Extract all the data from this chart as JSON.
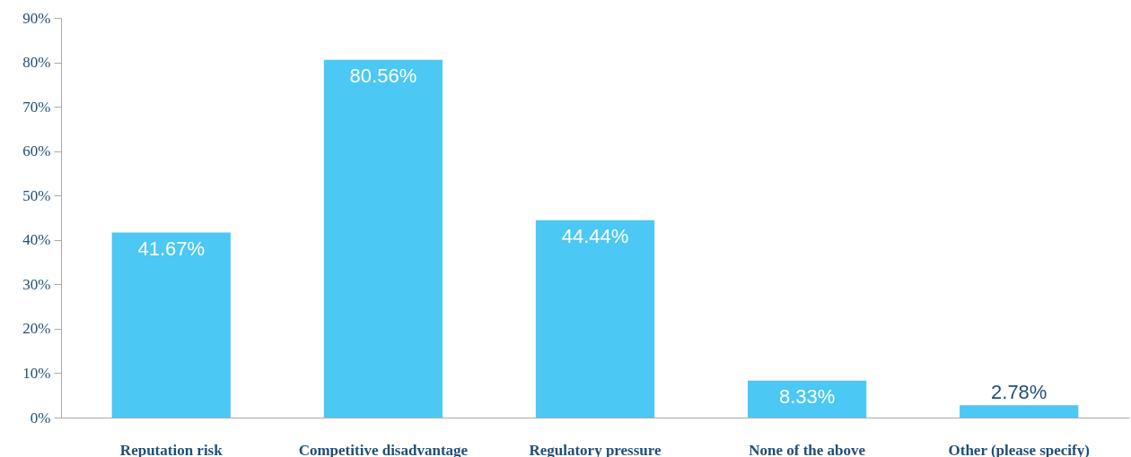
{
  "chart_data": {
    "type": "bar",
    "categories": [
      "Reputation risk",
      "Competitive disadvantage",
      "Regulatory pressure",
      "None of the above",
      "Other (please specify)"
    ],
    "values": [
      41.67,
      80.56,
      44.44,
      8.33,
      2.78
    ],
    "value_labels": [
      "41.67%",
      "80.56%",
      "44.44%",
      "8.33%",
      "2.78%"
    ],
    "color": "#4bc8f4",
    "ylim": [
      0,
      90
    ],
    "yticks": [
      {
        "value": 0,
        "label": "0%"
      },
      {
        "value": 10,
        "label": "10%"
      },
      {
        "value": 20,
        "label": "20%"
      },
      {
        "value": 30,
        "label": "30%"
      },
      {
        "value": 40,
        "label": "40%"
      },
      {
        "value": 50,
        "label": "50%"
      },
      {
        "value": 60,
        "label": "60%"
      },
      {
        "value": 70,
        "label": "70%"
      },
      {
        "value": 80,
        "label": "80%"
      },
      {
        "value": 90,
        "label": "90%"
      }
    ],
    "grid": false
  }
}
